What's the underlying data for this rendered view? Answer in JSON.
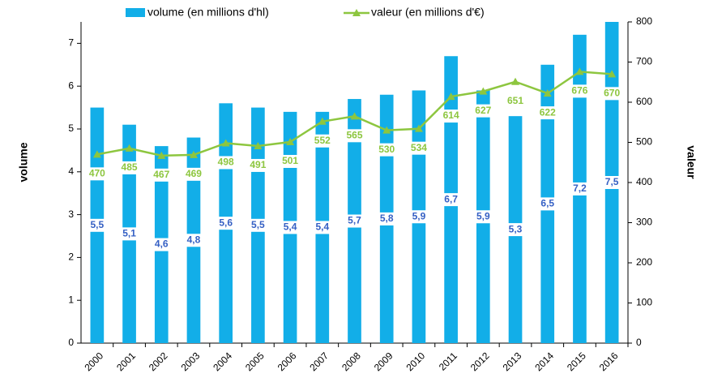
{
  "chart_data": {
    "type": "bar-line",
    "categories": [
      "2000",
      "2001",
      "2002",
      "2003",
      "2004",
      "2005",
      "2006",
      "2007",
      "2008",
      "2009",
      "2010",
      "2011",
      "2012",
      "2013",
      "2014",
      "2015",
      "2016"
    ],
    "series": [
      {
        "name": "volume (en millions d'hl)",
        "type": "bar",
        "color": "#12aee8",
        "label_color": "#3560c4",
        "values": [
          5.5,
          5.1,
          4.6,
          4.8,
          5.6,
          5.5,
          5.4,
          5.4,
          5.7,
          5.8,
          5.9,
          6.7,
          5.9,
          5.3,
          6.5,
          7.2,
          7.5
        ],
        "value_labels": [
          "5,5",
          "5,1",
          "4,6",
          "4,8",
          "5,6",
          "5,5",
          "5,4",
          "5,4",
          "5,7",
          "5,8",
          "5,9",
          "6,7",
          "5,9",
          "5,3",
          "6,5",
          "7,2",
          "7,5"
        ]
      },
      {
        "name": "valeur (en millions d'€)",
        "type": "line",
        "axis": "y2",
        "color": "#8dc63f",
        "values": [
          470,
          485,
          467,
          469,
          498,
          491,
          501,
          552,
          565,
          530,
          534,
          614,
          627,
          651,
          622,
          676,
          670
        ]
      }
    ],
    "ylabel": "volume",
    "y2label": "valeur",
    "ylim": [
      0,
      7.5
    ],
    "yticks": [
      0,
      1,
      2,
      3,
      4,
      5,
      6,
      7
    ],
    "y2lim": [
      0,
      800
    ],
    "y2ticks": [
      0,
      100,
      200,
      300,
      400,
      500,
      600,
      700,
      800
    ],
    "legend": "top"
  }
}
